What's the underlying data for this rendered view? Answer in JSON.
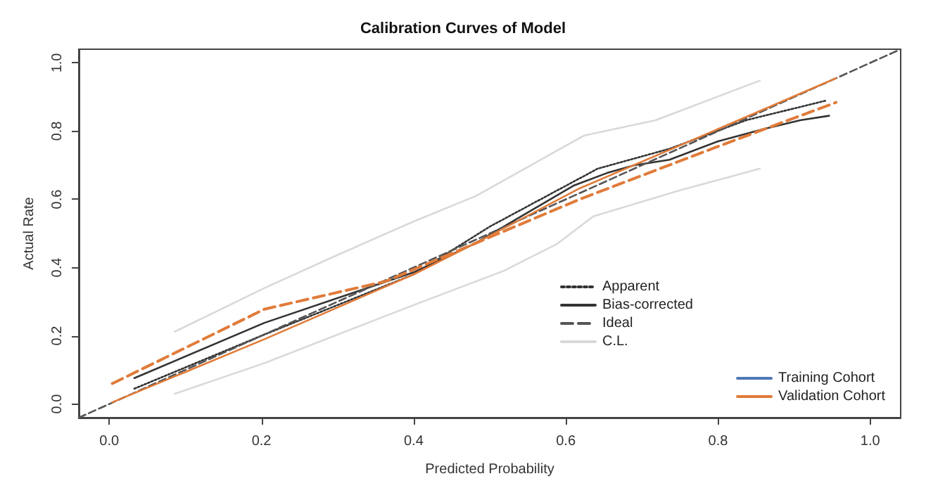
{
  "chart_data": {
    "type": "line",
    "title": "Calibration Curves of Model",
    "xlabel": "Predicted Probability",
    "ylabel": "Actual Rate",
    "xlim": [
      -0.04,
      1.04
    ],
    "ylim": [
      -0.04,
      1.04
    ],
    "xticks": [
      {
        "value": 0,
        "label": "0.0"
      },
      0.2,
      0.4,
      0.6,
      0.8,
      {
        "value": 1,
        "label": "1.0"
      }
    ],
    "yticks": [
      {
        "value": 0,
        "label": "0.0"
      },
      0.2,
      0.4,
      0.6,
      0.8,
      {
        "value": 1,
        "label": "1.0"
      }
    ],
    "grid": false,
    "legend": "bottom right",
    "marker": "none",
    "series": [
      {
        "name": "Apparent",
        "color": "#333333",
        "line_style": "dotted",
        "x": [
          0.033,
          0.2,
          0.4,
          0.5,
          0.642,
          0.736,
          0.837,
          0.943
        ],
        "values": [
          0.045,
          0.2,
          0.38,
          0.52,
          0.69,
          0.748,
          0.832,
          0.89
        ]
      },
      {
        "name": "Bias-corrected",
        "color": "#333333",
        "line_style": "solid",
        "x": [
          0.033,
          0.204,
          0.4,
          0.48,
          0.61,
          0.654,
          0.69,
          0.736,
          0.8,
          0.86,
          0.908,
          0.946
        ],
        "values": [
          0.076,
          0.238,
          0.386,
          0.47,
          0.64,
          0.677,
          0.7,
          0.716,
          0.77,
          0.806,
          0.832,
          0.845
        ]
      },
      {
        "name": "Ideal",
        "color": "#555555",
        "line_style": "dashed",
        "x": [
          -0.04,
          1.04
        ],
        "values": [
          -0.04,
          1.04
        ]
      },
      {
        "name": "C.L.",
        "color": "#d9d9d9",
        "line_style": "solid",
        "x": [
          0.086,
          0.204,
          0.293,
          0.4,
          0.482,
          0.624,
          0.718,
          0.855
        ],
        "values": [
          0.212,
          0.34,
          0.43,
          0.535,
          0.61,
          0.787,
          0.832,
          0.948
        ]
      },
      {
        "color": "#d9d9d9",
        "line_style": "solid",
        "x": [
          0.086,
          0.204,
          0.4,
          0.518,
          0.589,
          0.636,
          0.748,
          0.855
        ],
        "values": [
          0.03,
          0.12,
          0.29,
          0.39,
          0.47,
          0.55,
          0.625,
          0.69
        ]
      },
      {
        "color": "#e07b39",
        "line_style": "dashed",
        "x": [
          0.004,
          0.204,
          0.364,
          0.48,
          0.618,
          0.8,
          0.955
        ],
        "values": [
          0.06,
          0.278,
          0.36,
          0.47,
          0.6,
          0.755,
          0.884
        ]
      },
      {
        "name": "Training Cohort",
        "color": "#4e79b4",
        "line_style": "solid"
      },
      {
        "name": "Validation Cohort",
        "color": "#e07b39",
        "line_style": "solid",
        "x": [
          0.004,
          0.204,
          0.4,
          0.48,
          0.618,
          0.8,
          0.955
        ],
        "values": [
          0.005,
          0.19,
          0.38,
          0.47,
          0.632,
          0.806,
          0.955
        ]
      }
    ]
  }
}
